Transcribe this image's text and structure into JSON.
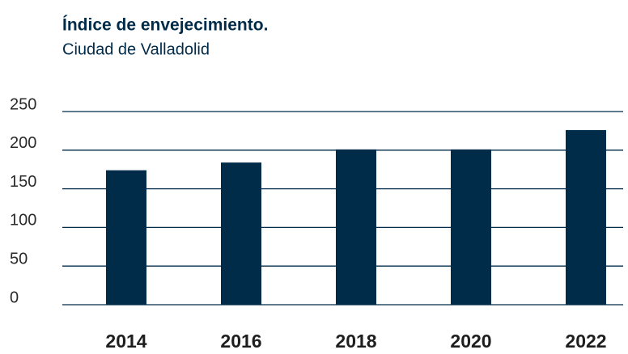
{
  "chart_data": {
    "type": "bar",
    "title": "Índice de envejecimiento.",
    "subtitle": "Ciudad de Valladolid",
    "categories": [
      "2014",
      "2016",
      "2018",
      "2020",
      "2022"
    ],
    "values": [
      174,
      184,
      201,
      201,
      226
    ],
    "color": "#002b49",
    "ylim": [
      0,
      250
    ],
    "yticks": [
      0,
      50,
      100,
      150,
      200,
      250
    ],
    "grid": true
  }
}
